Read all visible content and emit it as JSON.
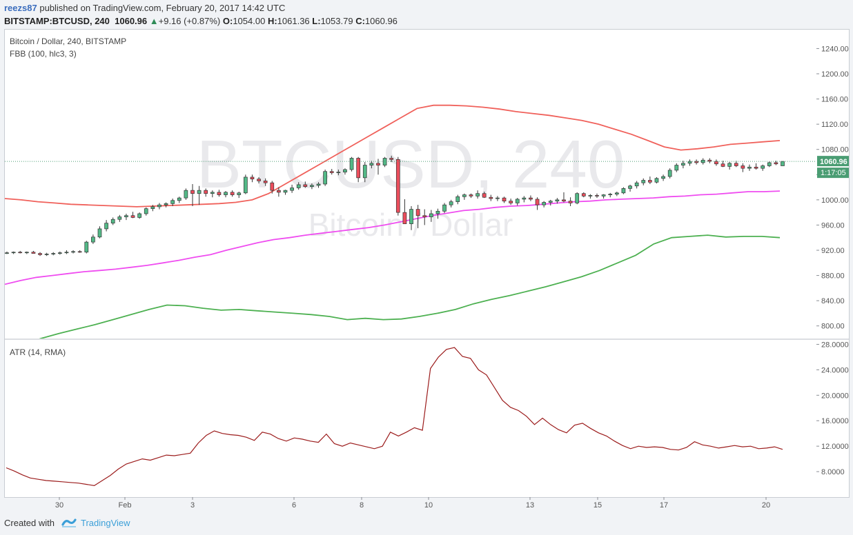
{
  "header": {
    "user": "reezs87",
    "published": "published on TradingView.com, February 20, 2017 14:42 UTC",
    "symbol": "BITSTAMP:BTCUSD, 240",
    "last": "1060.96",
    "change": "+9.16 (+0.87%)",
    "o_label": "O:",
    "o_val": "1054.00",
    "h_label": "H:",
    "h_val": "1061.36",
    "l_label": "L:",
    "l_val": "1053.79",
    "c_label": "C:",
    "c_val": "1060.96"
  },
  "chart_title": "Bitcoin / Dollar, 240, BITSTAMP",
  "indicator": "FBB (100, hlc3, 3)",
  "atr_label": "ATR (14, RMA)",
  "watermark": {
    "line1": "BTCUSD, 240",
    "line2": "Bitcoin / Dollar"
  },
  "price_tag": "1060.96",
  "countdown_tag": "1:17:05",
  "footer": {
    "created": "Created with",
    "brand": "TradingView"
  },
  "colors": {
    "up": "#53b987",
    "down": "#eb4d5c",
    "upper_band": "#f0605a",
    "basis": "#ef4cf0",
    "lower_band": "#4cb050",
    "atr": "#9b1b1b",
    "price_tag": "#4a9d73",
    "brand": "#3b9fd8"
  },
  "chart_data": [
    {
      "type": "candlestick",
      "title": "Bitcoin / Dollar, 240, BITSTAMP",
      "ylim": [
        780,
        1270
      ],
      "y_ticks": [
        "1240.00",
        "1200.00",
        "1160.00",
        "1120.00",
        "1080.00",
        "1040.00",
        "1000.00",
        "960.00",
        "920.00",
        "880.00",
        "840.00",
        "800.00"
      ],
      "x_ticks": [
        "30",
        "Feb",
        "3",
        "6",
        "8",
        "10",
        "13",
        "15",
        "17",
        "20"
      ],
      "ohlc": [
        [
          916,
          918,
          914,
          916
        ],
        [
          916,
          918,
          914,
          917
        ],
        [
          917,
          919,
          915,
          916
        ],
        [
          916,
          918,
          914,
          917
        ],
        [
          917,
          919,
          915,
          915
        ],
        [
          915,
          917,
          911,
          913
        ],
        [
          913,
          916,
          911,
          914
        ],
        [
          914,
          917,
          912,
          915
        ],
        [
          915,
          918,
          913,
          916
        ],
        [
          916,
          920,
          914,
          917
        ],
        [
          917,
          920,
          915,
          918
        ],
        [
          918,
          920,
          916,
          917
        ],
        [
          917,
          935,
          915,
          933
        ],
        [
          933,
          945,
          930,
          941
        ],
        [
          941,
          958,
          939,
          954
        ],
        [
          954,
          968,
          950,
          963
        ],
        [
          963,
          972,
          960,
          969
        ],
        [
          969,
          976,
          965,
          973
        ],
        [
          973,
          978,
          968,
          975
        ],
        [
          975,
          981,
          971,
          972
        ],
        [
          972,
          980,
          970,
          978
        ],
        [
          978,
          988,
          975,
          986
        ],
        [
          986,
          992,
          982,
          989
        ],
        [
          989,
          995,
          985,
          992
        ],
        [
          992,
          996,
          988,
          994
        ],
        [
          994,
          1002,
          990,
          999
        ],
        [
          999,
          1005,
          995,
          1003
        ],
        [
          1003,
          1018,
          1000,
          1015
        ],
        [
          1015,
          1025,
          990,
          1010
        ],
        [
          1010,
          1022,
          992,
          1015
        ],
        [
          1015,
          1018,
          1005,
          1010
        ],
        [
          1010,
          1015,
          1004,
          1012
        ],
        [
          1012,
          1016,
          1005,
          1008
        ],
        [
          1008,
          1014,
          1004,
          1012
        ],
        [
          1012,
          1015,
          1005,
          1008
        ],
        [
          1008,
          1013,
          1003,
          1011
        ],
        [
          1011,
          1040,
          1009,
          1036
        ],
        [
          1036,
          1040,
          1028,
          1033
        ],
        [
          1033,
          1036,
          1026,
          1030
        ],
        [
          1030,
          1034,
          1022,
          1027
        ],
        [
          1027,
          1030,
          1010,
          1015
        ],
        [
          1015,
          1020,
          1005,
          1012
        ],
        [
          1012,
          1016,
          1008,
          1015
        ],
        [
          1015,
          1024,
          1011,
          1019
        ],
        [
          1019,
          1028,
          1016,
          1024
        ],
        [
          1024,
          1029,
          1019,
          1021
        ],
        [
          1021,
          1026,
          1017,
          1023
        ],
        [
          1023,
          1028,
          1019,
          1025
        ],
        [
          1025,
          1048,
          1022,
          1045
        ],
        [
          1045,
          1049,
          1040,
          1043
        ],
        [
          1043,
          1048,
          1039,
          1044
        ],
        [
          1044,
          1050,
          1040,
          1048
        ],
        [
          1048,
          1068,
          1045,
          1066
        ],
        [
          1066,
          1068,
          1028,
          1035
        ],
        [
          1035,
          1060,
          1028,
          1055
        ],
        [
          1055,
          1062,
          1050,
          1058
        ],
        [
          1058,
          1065,
          1040,
          1055
        ],
        [
          1055,
          1068,
          1052,
          1066
        ],
        [
          1066,
          1070,
          1060,
          1064
        ],
        [
          1064,
          1068,
          975,
          980
        ],
        [
          980,
          1001,
          962,
          962
        ],
        [
          962,
          990,
          952,
          985
        ],
        [
          985,
          992,
          955,
          975
        ],
        [
          975,
          985,
          960,
          973
        ],
        [
          973,
          984,
          965,
          978
        ],
        [
          978,
          986,
          970,
          982
        ],
        [
          982,
          995,
          979,
          992
        ],
        [
          992,
          1000,
          988,
          997
        ],
        [
          997,
          1008,
          993,
          1005
        ],
        [
          1005,
          1010,
          1000,
          1008
        ],
        [
          1008,
          1010,
          1003,
          1006
        ],
        [
          1006,
          1015,
          1002,
          1010
        ],
        [
          1010,
          1013,
          1003,
          1004
        ],
        [
          1004,
          1008,
          998,
          1002
        ],
        [
          1002,
          1006,
          998,
          1003
        ],
        [
          1003,
          1005,
          995,
          998
        ],
        [
          998,
          1002,
          992,
          995
        ],
        [
          995,
          1003,
          991,
          1001
        ],
        [
          1001,
          1006,
          996,
          1003
        ],
        [
          1003,
          1007,
          998,
          1001
        ],
        [
          1001,
          1004,
          984,
          992
        ],
        [
          992,
          998,
          988,
          996
        ],
        [
          996,
          1000,
          991,
          998
        ],
        [
          998,
          1003,
          994,
          1000
        ],
        [
          1000,
          1012,
          996,
          998
        ],
        [
          998,
          1004,
          990,
          995
        ],
        [
          995,
          1012,
          993,
          1010
        ],
        [
          1010,
          1012,
          1004,
          1006
        ],
        [
          1006,
          1009,
          1002,
          1007
        ],
        [
          1007,
          1010,
          1003,
          1006
        ],
        [
          1006,
          1009,
          1002,
          1008
        ],
        [
          1008,
          1011,
          1004,
          1009
        ],
        [
          1009,
          1013,
          1006,
          1011
        ],
        [
          1011,
          1020,
          1009,
          1018
        ],
        [
          1018,
          1024,
          1013,
          1022
        ],
        [
          1022,
          1030,
          1018,
          1027
        ],
        [
          1027,
          1034,
          1023,
          1031
        ],
        [
          1031,
          1037,
          1025,
          1028
        ],
        [
          1028,
          1036,
          1026,
          1034
        ],
        [
          1034,
          1040,
          1030,
          1037
        ],
        [
          1037,
          1050,
          1034,
          1047
        ],
        [
          1047,
          1058,
          1044,
          1055
        ],
        [
          1055,
          1062,
          1050,
          1058
        ],
        [
          1058,
          1064,
          1054,
          1061
        ],
        [
          1061,
          1064,
          1056,
          1059
        ],
        [
          1059,
          1066,
          1056,
          1063
        ],
        [
          1063,
          1066,
          1058,
          1061
        ],
        [
          1061,
          1064,
          1054,
          1057
        ],
        [
          1057,
          1062,
          1052,
          1053
        ],
        [
          1053,
          1060,
          1048,
          1058
        ],
        [
          1058,
          1062,
          1052,
          1054
        ],
        [
          1054,
          1058,
          1044,
          1050
        ],
        [
          1050,
          1056,
          1046,
          1052
        ],
        [
          1052,
          1058,
          1048,
          1050
        ],
        [
          1050,
          1056,
          1046,
          1054
        ],
        [
          1054,
          1061,
          1052,
          1059
        ],
        [
          1059,
          1062,
          1055,
          1057
        ],
        [
          1054,
          1061.36,
          1053.79,
          1060.96
        ]
      ],
      "series": [
        {
          "name": "upper",
          "values": [
            1002,
            1000,
            997,
            995,
            993,
            992,
            991,
            990,
            989,
            990,
            991,
            992,
            993,
            994,
            996,
            1000,
            1010,
            1025,
            1040,
            1055,
            1070,
            1085,
            1100,
            1115,
            1130,
            1145,
            1150,
            1150,
            1149,
            1147,
            1144,
            1140,
            1137,
            1134,
            1130,
            1126,
            1120,
            1112,
            1104,
            1094,
            1084,
            1079,
            1081,
            1084,
            1088,
            1090,
            1092,
            1094
          ]
        },
        {
          "name": "basis",
          "values": [
            866,
            872,
            877,
            880,
            883,
            886,
            888,
            890,
            893,
            896,
            900,
            904,
            909,
            913,
            920,
            926,
            932,
            937,
            940,
            944,
            947,
            950,
            953,
            956,
            960,
            965,
            970,
            975,
            979,
            983,
            985,
            988,
            990,
            991,
            993,
            995,
            997,
            998,
            1000,
            1001,
            1002,
            1003,
            1005,
            1006,
            1008,
            1009,
            1011,
            1013,
            1013,
            1014
          ]
        },
        {
          "name": "lower",
          "values": [
            760,
            770,
            780,
            788,
            795,
            802,
            810,
            818,
            826,
            833,
            832,
            828,
            825,
            826,
            824,
            822,
            820,
            818,
            815,
            810,
            812,
            810,
            811,
            815,
            820,
            826,
            835,
            842,
            848,
            855,
            862,
            870,
            878,
            888,
            900,
            912,
            930,
            940,
            942,
            944,
            941,
            942,
            942,
            940
          ]
        }
      ]
    },
    {
      "type": "line",
      "title": "ATR (14, RMA)",
      "ylim": [
        4,
        28.7
      ],
      "y_ticks": [
        "28.0000",
        "24.0000",
        "20.0000",
        "16.0000",
        "12.0000",
        "8.0000"
      ],
      "series": [
        {
          "name": "ATR",
          "values": [
            8.6,
            8.1,
            7.5,
            7.0,
            6.8,
            6.6,
            6.5,
            6.4,
            6.3,
            6.2,
            6.0,
            5.8,
            6.6,
            7.4,
            8.4,
            9.2,
            9.6,
            10.0,
            9.8,
            10.2,
            10.6,
            10.5,
            10.7,
            10.9,
            12.5,
            13.7,
            14.4,
            14.0,
            13.8,
            13.7,
            13.4,
            12.9,
            14.2,
            13.9,
            13.2,
            12.8,
            13.3,
            13.1,
            12.8,
            12.6,
            13.9,
            12.4,
            12.0,
            12.5,
            12.2,
            11.9,
            11.6,
            12.0,
            14.2,
            13.6,
            14.2,
            14.9,
            14.5,
            24.2,
            26.0,
            27.2,
            27.5,
            26.1,
            25.8,
            24.0,
            23.2,
            21.2,
            19.2,
            18.1,
            17.6,
            16.7,
            15.4,
            16.4,
            15.4,
            14.6,
            14.1,
            15.3,
            15.6,
            14.8,
            14.1,
            13.6,
            12.8,
            12.1,
            11.6,
            12.0,
            11.8,
            11.9,
            11.8,
            11.5,
            11.4,
            11.8,
            12.7,
            12.2,
            12.0,
            11.7,
            11.9,
            12.1,
            11.9,
            12.0,
            11.6,
            11.7,
            11.9,
            11.5
          ]
        }
      ]
    }
  ]
}
